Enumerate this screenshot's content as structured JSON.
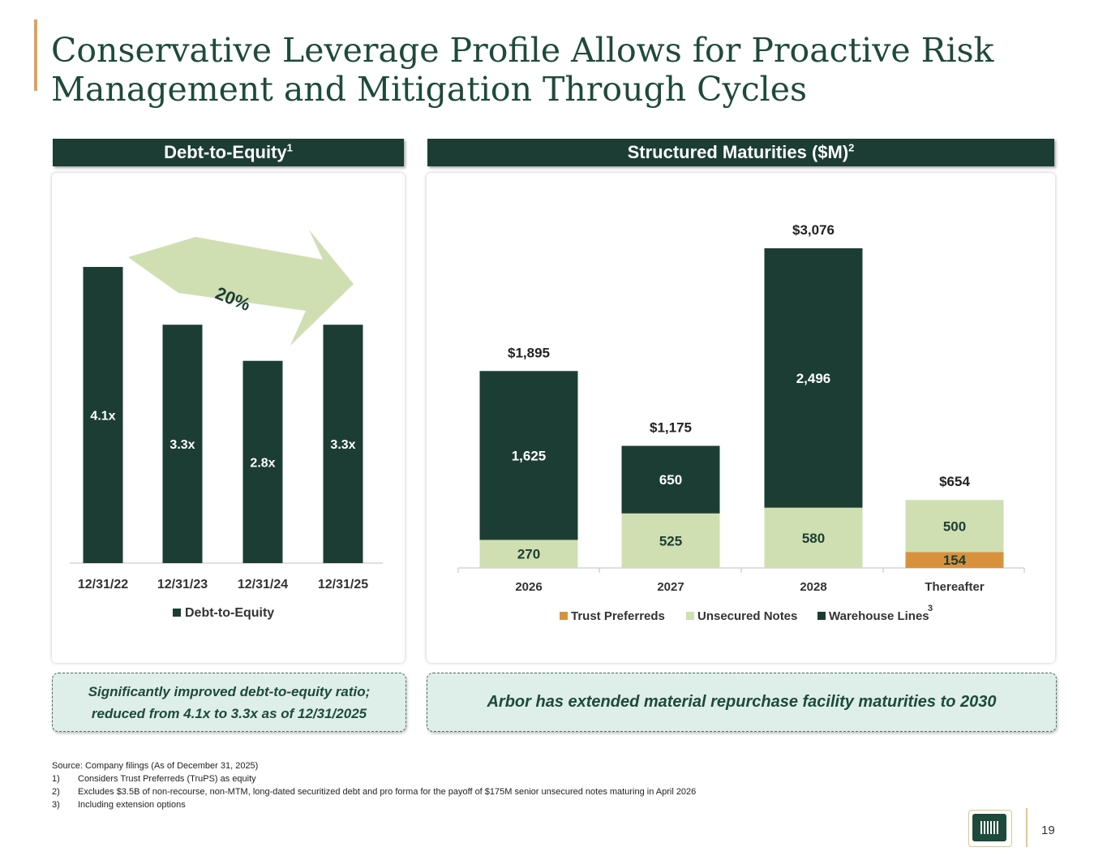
{
  "slide": {
    "title": "Conservative Leverage Profile Allows for Proactive Risk Management and Mitigation Through Cycles",
    "page_number": "19"
  },
  "left_panel": {
    "header": "Debt-to-Equity",
    "header_sup": "1",
    "callout_line1": "Significantly improved debt-to-equity ratio;",
    "callout_line2": "reduced from 4.1x to 3.3x as of 12/31/2025",
    "arrow_label": "20%"
  },
  "right_panel": {
    "header": "Structured Maturities  ($M)",
    "header_sup": "2",
    "callout": "Arbor has extended material repurchase facility maturities to 2030"
  },
  "footnotes": {
    "source": "Source: Company filings (As of December 31, 2025)",
    "items": [
      {
        "num": "1)",
        "text": "Considers Trust Preferreds (TruPS) as equity"
      },
      {
        "num": "2)",
        "text": "Excludes $3.5B of non-recourse, non-MTM, long-dated securitized debt and pro forma for the payoff of $175M senior unsecured notes maturing in April 2026"
      },
      {
        "num": "3)",
        "text": "Including extension options"
      }
    ]
  },
  "colors": {
    "dark_green": "#1c3d33",
    "light_green": "#cfdfb2",
    "orange": "#d8923e",
    "accent": "#d9a55b"
  },
  "chart_data": [
    {
      "type": "bar",
      "title": "Debt-to-Equity",
      "categories": [
        "12/31/22",
        "12/31/23",
        "12/31/24",
        "12/31/25"
      ],
      "values": [
        4.1,
        3.3,
        2.8,
        3.3
      ],
      "value_labels": [
        "4.1x",
        "3.3x",
        "2.8x",
        "3.3x"
      ],
      "series_name": "Debt-to-Equity",
      "ylim": [
        0,
        4.1
      ],
      "legend": "bottom"
    },
    {
      "type": "bar",
      "stacked": true,
      "title": "Structured Maturities ($M)",
      "categories": [
        "2026",
        "2027",
        "2028",
        "Thereafter"
      ],
      "series": [
        {
          "name": "Trust Preferreds",
          "values": [
            0,
            0,
            0,
            154
          ],
          "labels": [
            "",
            "",
            "",
            "154"
          ]
        },
        {
          "name": "Unsecured Notes",
          "values": [
            270,
            525,
            580,
            500
          ],
          "labels": [
            "270",
            "525",
            "580",
            "500"
          ]
        },
        {
          "name": "Warehouse Lines",
          "legend_sup": "3",
          "values": [
            1625,
            650,
            2496,
            0
          ],
          "labels": [
            "1,625",
            "650",
            "2,496",
            ""
          ]
        }
      ],
      "totals": [
        "$1,895",
        "$1,175",
        "$3,076",
        "$654"
      ],
      "ylim": [
        0,
        3076
      ],
      "legend": "bottom"
    }
  ]
}
